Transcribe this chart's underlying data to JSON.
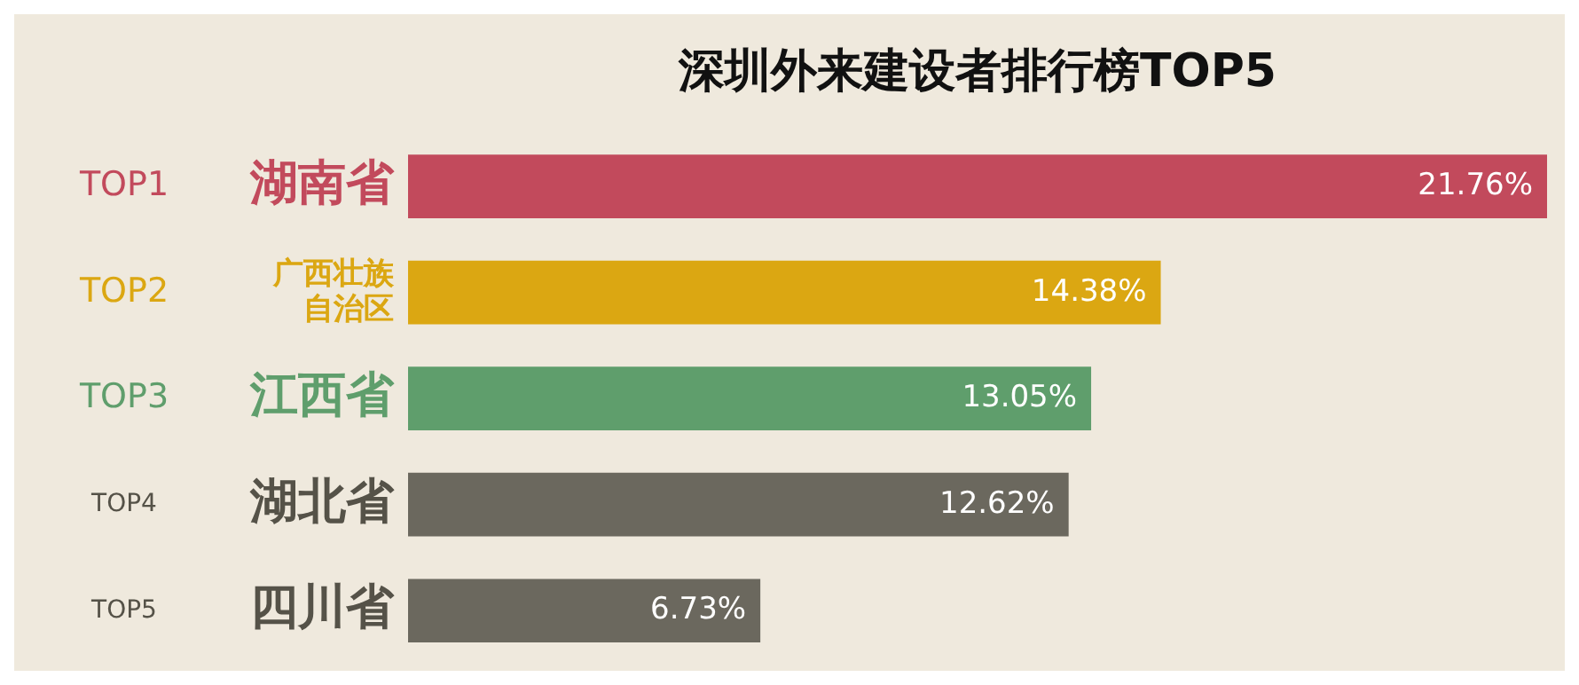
{
  "chart_data": {
    "type": "bar",
    "orientation": "horizontal",
    "title": "深圳外来建设者排行榜TOP5",
    "categories": [
      "湖南省",
      "广西壮族自治区",
      "江西省",
      "湖北省",
      "四川省"
    ],
    "values": [
      21.76,
      14.38,
      13.05,
      12.62,
      6.73
    ],
    "colors": [
      "#c24a5c",
      "#dba712",
      "#5f9e6c",
      "#6b685e",
      "#6b685e"
    ],
    "value_labels": [
      "21.76%",
      "14.38%",
      "13.05%",
      "12.62%",
      "6.73%"
    ],
    "annotations": [
      "TOP1",
      "TOP2",
      "TOP3",
      "TOP4",
      "TOP5"
    ]
  }
}
